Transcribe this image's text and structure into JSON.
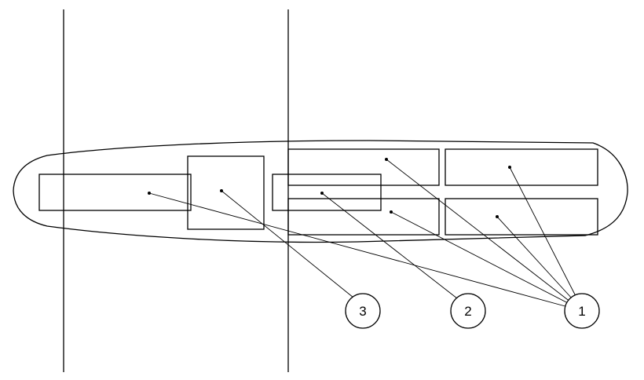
{
  "callouts": [
    {
      "id": "1",
      "label": "1"
    },
    {
      "id": "2",
      "label": "2"
    },
    {
      "id": "3",
      "label": "3"
    }
  ]
}
